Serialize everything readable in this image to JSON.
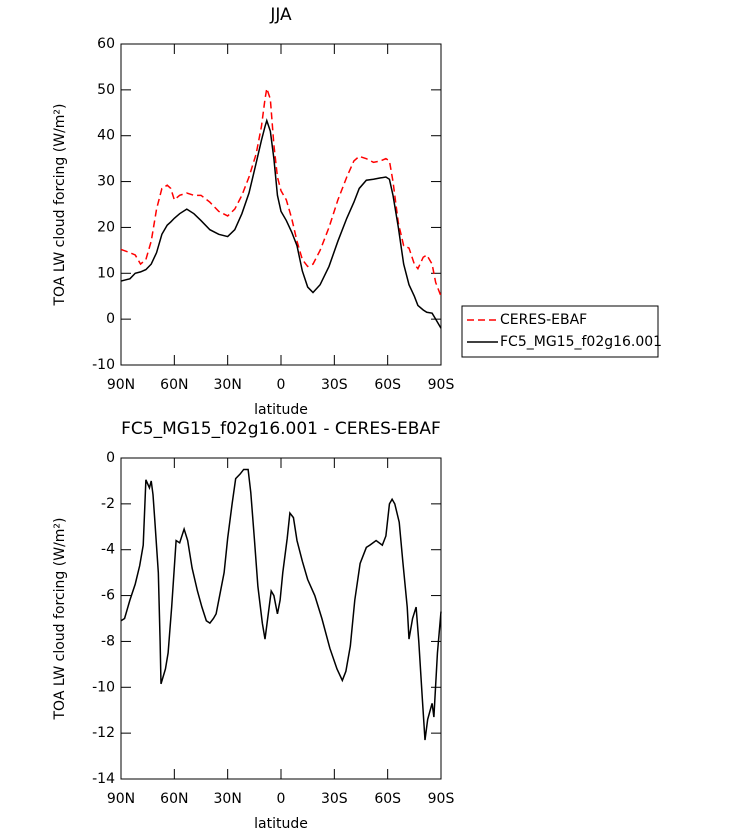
{
  "chart_data": [
    {
      "type": "line",
      "title": "JJA",
      "xlabel": "latitude",
      "ylabel": "TOA LW cloud forcing (W/m²)",
      "x": [
        90,
        85,
        82,
        79,
        76,
        73,
        70,
        67,
        64,
        62,
        60,
        57,
        53,
        49,
        45,
        40,
        35,
        30,
        26,
        22,
        18,
        14,
        11,
        9,
        8,
        6,
        4,
        2,
        0,
        -3,
        -6,
        -9,
        -12,
        -15,
        -18,
        -22,
        -27,
        -32,
        -37,
        -41,
        -44,
        -48,
        -52,
        -56,
        -59,
        -61,
        -63,
        -66,
        -69,
        -72,
        -75,
        -77,
        -80,
        -82,
        -85,
        -87,
        -90
      ],
      "series": [
        {
          "name": "CERES-EBAF",
          "color": "#ff0000",
          "dashed": true,
          "values": [
            15.2,
            14.5,
            14,
            12,
            13,
            17,
            24,
            28.5,
            29.2,
            28.5,
            26,
            27,
            27.5,
            27,
            27,
            25.5,
            23.5,
            22.5,
            24,
            27,
            31,
            36,
            42,
            48,
            50.3,
            48,
            38,
            31,
            28,
            26,
            22,
            17,
            13,
            11.5,
            12,
            15,
            20,
            26,
            31,
            34.5,
            35.5,
            35,
            34.2,
            34.5,
            35,
            34.5,
            30,
            21,
            16,
            15.5,
            12,
            11,
            13.5,
            14,
            12,
            8,
            5
          ]
        },
        {
          "name": "FC5_MG15_f02g16.001",
          "color": "#000000",
          "dashed": false,
          "values": [
            8.3,
            8.8,
            10,
            10.3,
            10.8,
            12,
            14.5,
            18.5,
            20.5,
            21.2,
            22,
            23,
            24,
            23,
            21.5,
            19.5,
            18.5,
            18,
            19.5,
            23,
            27.5,
            34,
            39,
            42,
            43.3,
            41,
            35,
            27,
            23.5,
            21.5,
            19,
            16,
            10.5,
            7,
            5.8,
            7.5,
            11.5,
            17,
            22,
            25.5,
            28.5,
            30.3,
            30.5,
            30.8,
            31,
            30.5,
            27,
            20,
            12,
            7.5,
            5,
            3,
            2,
            1.5,
            1.3,
            0,
            -2
          ]
        }
      ],
      "legend": "right",
      "xlim": [
        90,
        -90
      ],
      "xticks": [
        {
          "value": 90,
          "label": "90N"
        },
        {
          "value": 60,
          "label": "60N"
        },
        {
          "value": 30,
          "label": "30N"
        },
        0,
        {
          "value": -30,
          "label": "30S"
        },
        {
          "value": -60,
          "label": "60S"
        },
        {
          "value": -90,
          "label": "90S"
        }
      ],
      "ylim": [
        -10,
        60
      ],
      "yticks": [
        -10,
        0,
        10,
        20,
        30,
        40,
        50,
        60
      ]
    },
    {
      "type": "line",
      "title": "FC5_MG15_f02g16.001 - CERES-EBAF",
      "xlabel": "latitude",
      "ylabel": "TOA LW cloud forcing (W/m²)",
      "x": [
        90,
        88,
        85,
        82,
        79.5,
        77.5,
        76,
        74,
        73,
        72,
        71,
        69,
        68,
        67.5,
        65,
        63.5,
        61.5,
        59,
        57,
        54.5,
        52.5,
        50,
        47,
        44.5,
        42,
        40,
        38,
        36.5,
        34.5,
        32,
        30,
        27.5,
        25.5,
        23,
        21,
        18.5,
        17,
        15,
        13,
        10.5,
        9,
        7.5,
        5.5,
        4,
        2,
        0.5,
        -1,
        -3.5,
        -5,
        -7,
        -9,
        -12,
        -15,
        -19,
        -23,
        -27.5,
        -31.5,
        -34.5,
        -36.5,
        -39,
        -41.5,
        -44.5,
        -48,
        -50,
        -53.5,
        -57,
        -59,
        -61,
        -62.5,
        -64,
        -66.5,
        -68.5,
        -71,
        -72,
        -74,
        -76,
        -77.5,
        -79.5,
        -81,
        -82.5,
        -85,
        -86,
        -88,
        -90
      ],
      "series": [
        {
          "color": "#000000",
          "dashed": false,
          "values": [
            -7.1,
            -7.0,
            -6.2,
            -5.5,
            -4.7,
            -3.8,
            -0.95,
            -1.3,
            -1.0,
            -1.6,
            -2.7,
            -5,
            -8,
            -9.85,
            -9.2,
            -8.5,
            -6.5,
            -3.6,
            -3.7,
            -3.1,
            -3.6,
            -4.8,
            -5.8,
            -6.5,
            -7.1,
            -7.2,
            -7.0,
            -6.8,
            -6,
            -5,
            -3.5,
            -2,
            -0.9,
            -0.7,
            -0.5,
            -0.5,
            -1.5,
            -3.5,
            -5.6,
            -7.2,
            -7.9,
            -7.0,
            -5.8,
            -6.0,
            -6.8,
            -6.2,
            -5.0,
            -3.5,
            -2.4,
            -2.6,
            -3.6,
            -4.5,
            -5.3,
            -6,
            -7,
            -8.3,
            -9.2,
            -9.7,
            -9.3,
            -8.2,
            -6.2,
            -4.6,
            -3.9,
            -3.8,
            -3.6,
            -3.8,
            -3.4,
            -2,
            -1.8,
            -2,
            -2.8,
            -4.5,
            -6.5,
            -7.9,
            -7,
            -6.5,
            -8,
            -10.5,
            -12.3,
            -11.4,
            -10.7,
            -11.3,
            -8.5,
            -6.7
          ]
        }
      ],
      "xlim": [
        90,
        -90
      ],
      "xticks": [
        {
          "value": 90,
          "label": "90N"
        },
        {
          "value": 60,
          "label": "60N"
        },
        {
          "value": 30,
          "label": "30N"
        },
        0,
        {
          "value": -30,
          "label": "30S"
        },
        {
          "value": -60,
          "label": "60S"
        },
        {
          "value": -90,
          "label": "90S"
        }
      ],
      "ylim": [
        -14,
        0
      ],
      "yticks": [
        -14,
        -12,
        -10,
        -8,
        -6,
        -4,
        -2,
        0
      ]
    }
  ]
}
